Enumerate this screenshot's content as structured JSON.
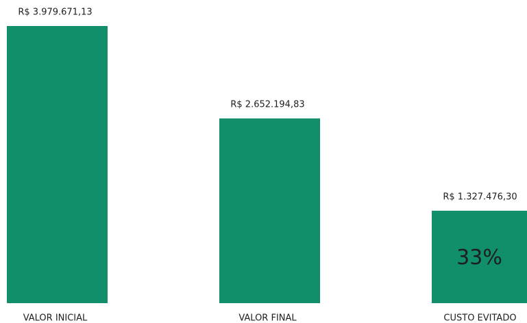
{
  "chart_data": {
    "type": "bar",
    "categories": [
      "VALOR INICIAL",
      "VALOR FINAL",
      "CUSTO EVITADO"
    ],
    "values": [
      3979671.13,
      2652194.83,
      1327476.3
    ],
    "value_labels": [
      "R$ 3.979.671,13",
      "R$ 2.652.194,83",
      "R$ 1.327.476,30"
    ],
    "annotation": "33%",
    "color": "#118f6a"
  }
}
